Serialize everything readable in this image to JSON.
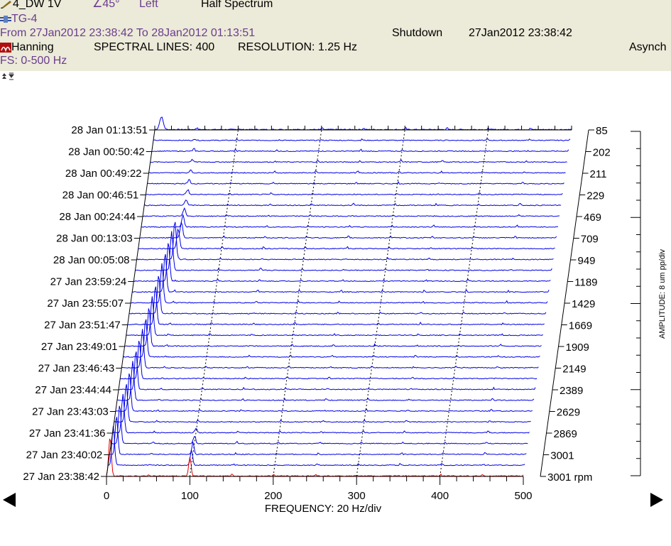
{
  "header": {
    "channel": "4_DW 1V",
    "angle": "∠45°",
    "side": "Left",
    "mode": "Half Spectrum",
    "machine": "TG-4",
    "range": "From 27Jan2012 23:38:42 To 28Jan2012 01:13:51",
    "state": "Shutdown",
    "state_time": "27Jan2012 23:38:42",
    "window": "Hanning",
    "spectral_lines": "SPECTRAL LINES: 400",
    "resolution": "RESOLUTION:  1.25 Hz",
    "sampling": "Asynch",
    "fs": "FS: 0-500 Hz"
  },
  "icons": {
    "channel_icon": "pen-icon",
    "machine_icon": "machine-icon",
    "window_icon": "window-function-icon",
    "toolbar_icon": "collapse-expand-icon",
    "prev_icon": "arrow-left-icon",
    "next_icon": "arrow-right-icon"
  },
  "colors": {
    "trace": "#0000e6",
    "first_trace": "#e00000",
    "header_bg": "#ecead8",
    "header_text_purple": "#6a3d8f"
  },
  "chart_data": {
    "type": "waterfall",
    "xlabel": "FREQUENCY: 20 Hz/div",
    "zlabel": "AMPLITUDE: 8 um pp/div",
    "xlim": [
      0,
      500
    ],
    "x_ticks": [
      "0",
      "100",
      "200",
      "300",
      "400",
      "500"
    ],
    "time_labels": [
      "27 Jan 23:38:42",
      "27 Jan 23:40:02",
      "27 Jan 23:41:36",
      "27 Jan 23:43:03",
      "27 Jan 23:44:44",
      "27 Jan 23:46:43",
      "27 Jan 23:49:01",
      "27 Jan 23:51:47",
      "27 Jan 23:55:07",
      "27 Jan 23:59:24",
      "28 Jan 00:05:08",
      "28 Jan 00:13:03",
      "28 Jan 00:24:44",
      "28 Jan 00:46:51",
      "28 Jan 00:49:22",
      "28 Jan 00:50:42",
      "28 Jan 01:13:51"
    ],
    "rpm_labels": [
      "3001 rpm",
      "3001",
      "2869",
      "2629",
      "2389",
      "2149",
      "1909",
      "1669",
      "1429",
      "1189",
      "949",
      "709",
      "469",
      "229",
      "211",
      "202",
      "85"
    ],
    "trace_count": 33,
    "peak_50hz_trace": 20,
    "peak_100hz_trace": 4
  }
}
